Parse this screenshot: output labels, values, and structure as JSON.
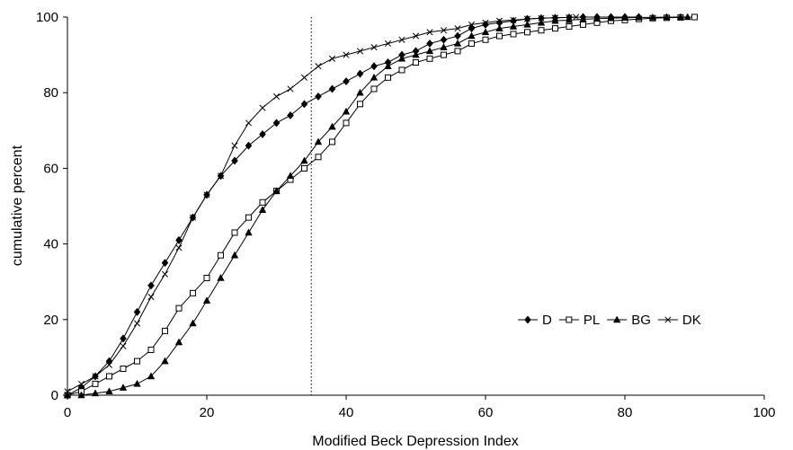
{
  "chart_data": {
    "type": "line",
    "title": "",
    "xlabel": "Modified Beck Depression Index",
    "ylabel": "cumulative percent",
    "xlim": [
      0,
      100
    ],
    "ylim": [
      0,
      100
    ],
    "xticks": [
      0,
      20,
      40,
      60,
      80,
      100
    ],
    "yticks": [
      0,
      20,
      40,
      60,
      80,
      100
    ],
    "grid": false,
    "reference_line_x": 35,
    "legend_position": "lower-right",
    "series": [
      {
        "name": "D",
        "marker": "filled-diamond",
        "color": "#000000",
        "x": [
          0,
          2,
          4,
          6,
          8,
          10,
          12,
          14,
          16,
          18,
          20,
          22,
          24,
          26,
          28,
          30,
          32,
          34,
          36,
          38,
          40,
          42,
          44,
          46,
          48,
          50,
          52,
          54,
          56,
          58,
          60,
          62,
          64,
          66,
          68,
          70,
          72,
          74,
          76,
          78,
          80,
          82
        ],
        "y": [
          0,
          2,
          5,
          9,
          15,
          22,
          29,
          35,
          41,
          47,
          53,
          58,
          62,
          66,
          69,
          72,
          74,
          77,
          79,
          81,
          83,
          85,
          87,
          88,
          90,
          91,
          93,
          94,
          95,
          97,
          98,
          98.5,
          99,
          99.5,
          99.7,
          99.8,
          99.9,
          100,
          100,
          100,
          100,
          100
        ]
      },
      {
        "name": "PL",
        "marker": "open-square",
        "color": "#000000",
        "x": [
          0,
          2,
          4,
          6,
          8,
          10,
          12,
          14,
          16,
          18,
          20,
          22,
          24,
          26,
          28,
          30,
          32,
          34,
          36,
          38,
          40,
          42,
          44,
          46,
          48,
          50,
          52,
          54,
          56,
          58,
          60,
          62,
          64,
          66,
          68,
          70,
          72,
          74,
          76,
          78,
          80,
          82,
          84,
          86,
          88,
          90
        ],
        "y": [
          0,
          1,
          3,
          5,
          7,
          9,
          12,
          17,
          23,
          27,
          31,
          37,
          43,
          47,
          51,
          54,
          57,
          60,
          63,
          67,
          72,
          77,
          81,
          84,
          86,
          88,
          89,
          90,
          91,
          93,
          94,
          95,
          95.5,
          96,
          96.5,
          97,
          97.5,
          98,
          98.5,
          99,
          99.2,
          99.5,
          99.7,
          99.8,
          99.9,
          100
        ]
      },
      {
        "name": "BG",
        "marker": "filled-triangle",
        "color": "#000000",
        "x": [
          0,
          2,
          4,
          6,
          8,
          10,
          12,
          14,
          16,
          18,
          20,
          22,
          24,
          26,
          28,
          30,
          32,
          34,
          36,
          38,
          40,
          42,
          44,
          46,
          48,
          50,
          52,
          54,
          56,
          58,
          60,
          62,
          64,
          66,
          68,
          70,
          72,
          74,
          76,
          78,
          80,
          82,
          84,
          86,
          88,
          89
        ],
        "y": [
          0,
          0,
          0.5,
          1,
          2,
          3,
          5,
          9,
          14,
          19,
          25,
          31,
          37,
          43,
          49,
          54,
          58,
          62,
          67,
          71,
          75,
          80,
          84,
          87,
          89,
          90,
          91,
          92,
          93,
          95,
          96,
          97,
          97.5,
          98,
          98.5,
          99,
          99.2,
          99.4,
          99.6,
          99.7,
          99.8,
          99.9,
          99.9,
          100,
          100,
          100
        ]
      },
      {
        "name": "DK",
        "marker": "x",
        "color": "#000000",
        "x": [
          0,
          2,
          4,
          6,
          8,
          10,
          12,
          14,
          16,
          18,
          20,
          22,
          24,
          26,
          28,
          30,
          32,
          34,
          36,
          38,
          40,
          42,
          44,
          46,
          48,
          50,
          52,
          54,
          56,
          58,
          60,
          62,
          64,
          66,
          68,
          70,
          72,
          73
        ],
        "y": [
          1,
          3,
          5,
          8,
          13,
          19,
          26,
          32,
          39,
          47,
          53,
          58,
          66,
          72,
          76,
          79,
          81,
          84,
          87,
          89,
          90,
          91,
          92,
          93,
          94,
          95,
          96,
          96.5,
          97,
          98,
          98.5,
          99,
          99.2,
          99.5,
          99.7,
          99.8,
          99.9,
          100
        ]
      }
    ]
  }
}
